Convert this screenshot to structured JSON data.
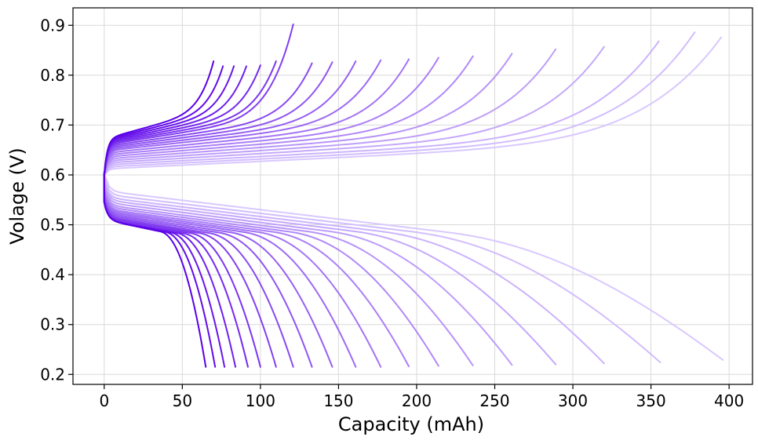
{
  "chart_data": {
    "type": "line",
    "title": "",
    "xlabel": "Capacity (mAh)",
    "ylabel": "Volage (V)",
    "xlim": [
      -20,
      415
    ],
    "ylim": [
      0.18,
      0.935
    ],
    "xticks": [
      0,
      50,
      100,
      150,
      200,
      250,
      300,
      350,
      400
    ],
    "yticks": [
      0.2,
      0.3,
      0.4,
      0.5,
      0.6,
      0.7,
      0.8,
      0.9
    ],
    "xtick_labels": [
      "0",
      "50",
      "100",
      "150",
      "200",
      "250",
      "300",
      "350",
      "400"
    ],
    "ytick_labels": [
      "0.2",
      "0.3",
      "0.4",
      "0.5",
      "0.6",
      "0.7",
      "0.8",
      "0.9"
    ],
    "grid": true,
    "legend": "none",
    "color_start": "#5b00e8",
    "color_end": "#d9c8ff",
    "series": [
      {
        "charge_capacity": 70,
        "charge_end_voltage": 0.828,
        "charge_start_voltage": 0.672,
        "discharge_capacity": 65,
        "discharge_start_voltage": 0.545,
        "discharge_knee_voltage": 0.46,
        "discharge_end_voltage": 0.215
      },
      {
        "charge_capacity": 76,
        "charge_end_voltage": 0.818,
        "charge_start_voltage": 0.67,
        "discharge_capacity": 71,
        "discharge_start_voltage": 0.545,
        "discharge_knee_voltage": 0.458,
        "discharge_end_voltage": 0.215
      },
      {
        "charge_capacity": 83,
        "charge_end_voltage": 0.818,
        "charge_start_voltage": 0.668,
        "discharge_capacity": 77,
        "discharge_start_voltage": 0.545,
        "discharge_knee_voltage": 0.456,
        "discharge_end_voltage": 0.215
      },
      {
        "charge_capacity": 91,
        "charge_end_voltage": 0.818,
        "charge_start_voltage": 0.666,
        "discharge_capacity": 84,
        "discharge_start_voltage": 0.545,
        "discharge_knee_voltage": 0.454,
        "discharge_end_voltage": 0.215
      },
      {
        "charge_capacity": 100,
        "charge_end_voltage": 0.82,
        "charge_start_voltage": 0.664,
        "discharge_capacity": 92,
        "discharge_start_voltage": 0.545,
        "discharge_knee_voltage": 0.452,
        "discharge_end_voltage": 0.215
      },
      {
        "charge_capacity": 110,
        "charge_end_voltage": 0.828,
        "charge_start_voltage": 0.662,
        "discharge_capacity": 100,
        "discharge_start_voltage": 0.548,
        "discharge_knee_voltage": 0.45,
        "discharge_end_voltage": 0.215
      },
      {
        "charge_capacity": 121,
        "charge_end_voltage": 0.902,
        "charge_start_voltage": 0.66,
        "discharge_capacity": 110,
        "discharge_start_voltage": 0.55,
        "discharge_knee_voltage": 0.448,
        "discharge_end_voltage": 0.215
      },
      {
        "charge_capacity": 133,
        "charge_end_voltage": 0.824,
        "charge_start_voltage": 0.657,
        "discharge_capacity": 121,
        "discharge_start_voltage": 0.552,
        "discharge_knee_voltage": 0.446,
        "discharge_end_voltage": 0.215
      },
      {
        "charge_capacity": 146,
        "charge_end_voltage": 0.826,
        "charge_start_voltage": 0.654,
        "discharge_capacity": 133,
        "discharge_start_voltage": 0.555,
        "discharge_knee_voltage": 0.444,
        "discharge_end_voltage": 0.215
      },
      {
        "charge_capacity": 161,
        "charge_end_voltage": 0.828,
        "charge_start_voltage": 0.651,
        "discharge_capacity": 146,
        "discharge_start_voltage": 0.558,
        "discharge_knee_voltage": 0.442,
        "discharge_end_voltage": 0.215
      },
      {
        "charge_capacity": 177,
        "charge_end_voltage": 0.83,
        "charge_start_voltage": 0.648,
        "discharge_capacity": 161,
        "discharge_start_voltage": 0.561,
        "discharge_knee_voltage": 0.44,
        "discharge_end_voltage": 0.215
      },
      {
        "charge_capacity": 195,
        "charge_end_voltage": 0.832,
        "charge_start_voltage": 0.644,
        "discharge_capacity": 177,
        "discharge_start_voltage": 0.564,
        "discharge_knee_voltage": 0.437,
        "discharge_end_voltage": 0.215
      },
      {
        "charge_capacity": 214,
        "charge_end_voltage": 0.835,
        "charge_start_voltage": 0.64,
        "discharge_capacity": 195,
        "discharge_start_voltage": 0.567,
        "discharge_knee_voltage": 0.434,
        "discharge_end_voltage": 0.216
      },
      {
        "charge_capacity": 236,
        "charge_end_voltage": 0.838,
        "charge_start_voltage": 0.636,
        "discharge_capacity": 214,
        "discharge_start_voltage": 0.571,
        "discharge_knee_voltage": 0.43,
        "discharge_end_voltage": 0.217
      },
      {
        "charge_capacity": 261,
        "charge_end_voltage": 0.843,
        "charge_start_voltage": 0.632,
        "discharge_capacity": 236,
        "discharge_start_voltage": 0.575,
        "discharge_knee_voltage": 0.426,
        "discharge_end_voltage": 0.218
      },
      {
        "charge_capacity": 289,
        "charge_end_voltage": 0.852,
        "charge_start_voltage": 0.628,
        "discharge_capacity": 261,
        "discharge_start_voltage": 0.58,
        "discharge_knee_voltage": 0.421,
        "discharge_end_voltage": 0.219
      },
      {
        "charge_capacity": 320,
        "charge_end_voltage": 0.857,
        "charge_start_voltage": 0.624,
        "discharge_capacity": 289,
        "discharge_start_voltage": 0.585,
        "discharge_knee_voltage": 0.416,
        "discharge_end_voltage": 0.22
      },
      {
        "charge_capacity": 355,
        "charge_end_voltage": 0.868,
        "charge_start_voltage": 0.62,
        "discharge_capacity": 320,
        "discharge_start_voltage": 0.59,
        "discharge_knee_voltage": 0.41,
        "discharge_end_voltage": 0.222
      },
      {
        "charge_capacity": 378,
        "charge_end_voltage": 0.886,
        "charge_start_voltage": 0.616,
        "discharge_capacity": 356,
        "discharge_start_voltage": 0.596,
        "discharge_knee_voltage": 0.402,
        "discharge_end_voltage": 0.224
      },
      {
        "charge_capacity": 395,
        "charge_end_voltage": 0.876,
        "charge_start_voltage": 0.612,
        "discharge_capacity": 396,
        "discharge_start_voltage": 0.603,
        "discharge_knee_voltage": 0.392,
        "discharge_end_voltage": 0.229
      }
    ]
  }
}
